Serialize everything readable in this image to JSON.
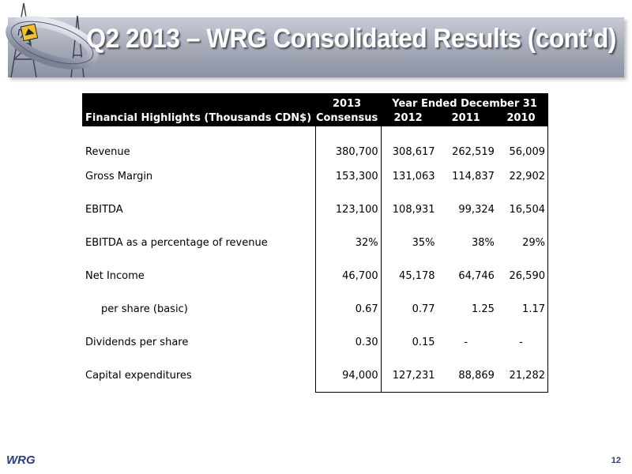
{
  "slide": {
    "title": "Q2 2013 – WRG Consolidated Results (cont’d)",
    "footer_logo": "WRG",
    "page_number": "12"
  },
  "table": {
    "header_row1": {
      "consensus_year": "2013",
      "year_span": "Year Ended December 31"
    },
    "header_row2": {
      "label": "Financial Highlights  (Thousands CDN$)",
      "consensus": "Consensus",
      "y2012": "2012",
      "y2011": "2011",
      "y2010": "2010"
    },
    "rows": [
      {
        "label": "Revenue",
        "consensus": "380,700",
        "y2012": "308,617",
        "y2011": "262,519",
        "y2010": "56,009"
      },
      {
        "label": "Gross Margin",
        "consensus": "153,300",
        "y2012": "131,063",
        "y2011": "114,837",
        "y2010": "22,902"
      },
      {
        "label": "EBITDA",
        "consensus": "123,100",
        "y2012": "108,931",
        "y2011": "99,324",
        "y2010": "16,504"
      },
      {
        "label": "EBITDA as a percentage of revenue",
        "consensus": "32%",
        "y2012": "35%",
        "y2011": "38%",
        "y2010": "29%"
      },
      {
        "label": "Net Income",
        "consensus": "46,700",
        "y2012": "45,178",
        "y2011": "64,746",
        "y2010": "26,590"
      },
      {
        "label": "per share (basic)",
        "consensus": "0.67",
        "y2012": "0.77",
        "y2011": "1.25",
        "y2010": "1.17"
      },
      {
        "label": "Dividends per share",
        "consensus": "0.30",
        "y2012": "0.15",
        "y2011": "-",
        "y2010": "-"
      },
      {
        "label": "Capital expenditures",
        "consensus": "94,000",
        "y2012": "127,231",
        "y2011": "88,869",
        "y2010": "21,282"
      }
    ]
  },
  "colors": {
    "banner": "#a9adbb",
    "title_text": "#ffffff",
    "table_header_bg": "#000000",
    "footer_text": "#2c3e7a"
  }
}
